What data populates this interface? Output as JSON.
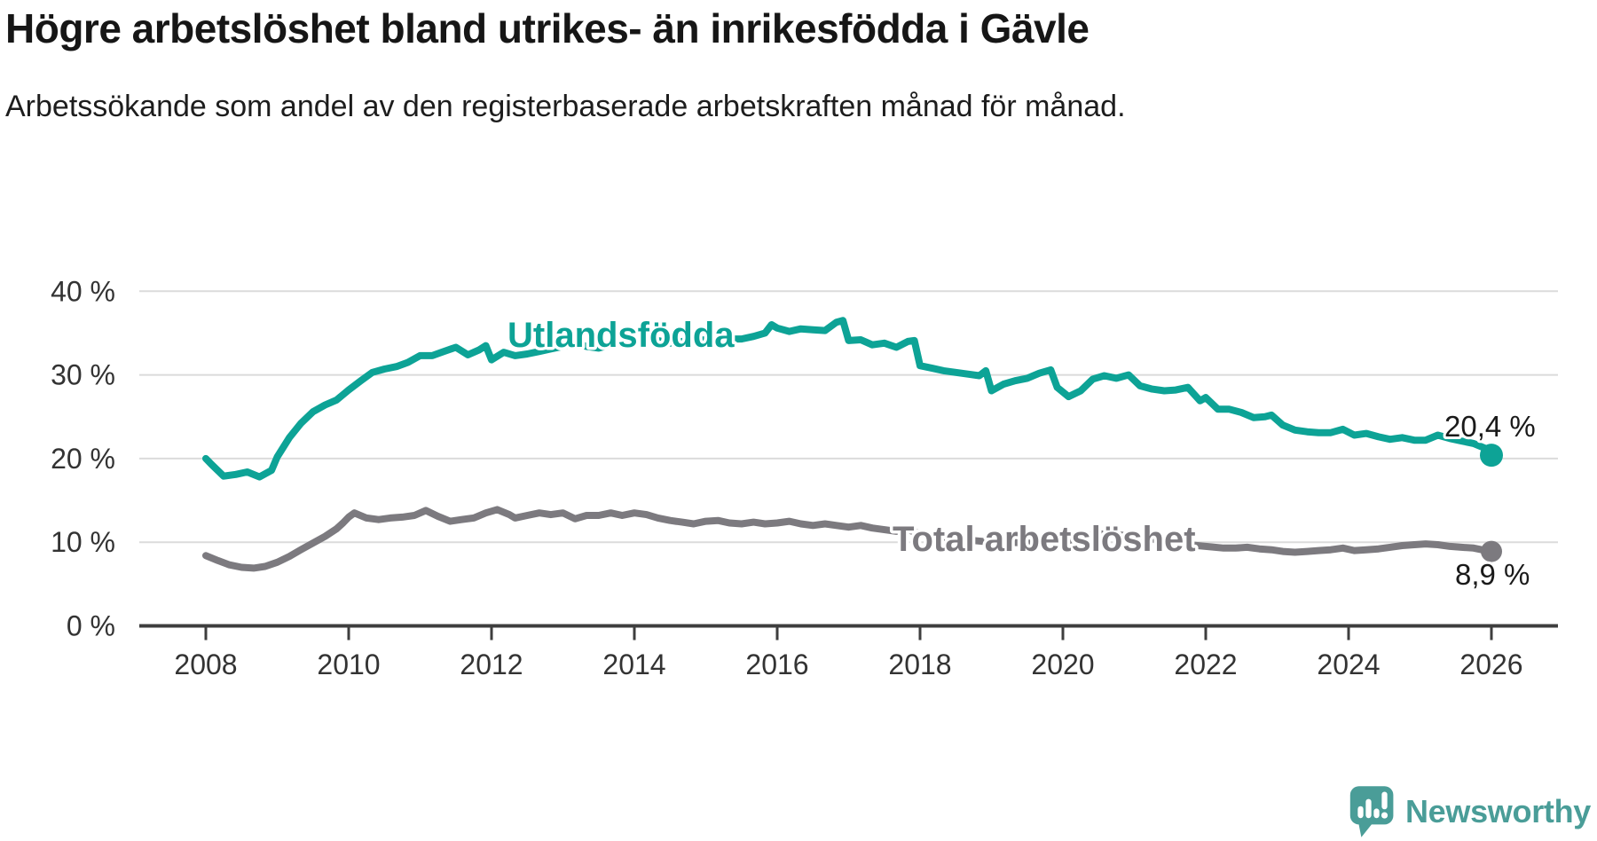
{
  "header": {
    "title": "Högre arbetslöshet bland utrikes- än inrikesfödda i Gävle",
    "subtitle": "Arbetssökande som andel av den registerbaserade arbetskraften månad för månad."
  },
  "chart_data": {
    "type": "line",
    "unit": "%",
    "grid": "horizontal",
    "x_axis": {
      "ticks": [
        2008,
        2010,
        2012,
        2014,
        2016,
        2018,
        2020,
        2022,
        2024,
        2026
      ],
      "range": [
        2007.1,
        2026.9
      ]
    },
    "y_axis": {
      "ticks": [
        {
          "value": 0,
          "label": "0 %"
        },
        {
          "value": 10,
          "label": "10 %"
        },
        {
          "value": 20,
          "label": "20 %"
        },
        {
          "value": 30,
          "label": "30 %"
        },
        {
          "value": 40,
          "label": "40 %"
        }
      ],
      "range": [
        0,
        42
      ]
    },
    "series": [
      {
        "name": "Utlandsfödda",
        "color": "#0DA396",
        "end_label": "20,4 %",
        "end_value": 20.4,
        "points": [
          [
            2008.0,
            20.0
          ],
          [
            2008.08,
            19.3
          ],
          [
            2008.25,
            17.9
          ],
          [
            2008.42,
            18.1
          ],
          [
            2008.58,
            18.4
          ],
          [
            2008.75,
            17.8
          ],
          [
            2008.92,
            18.6
          ],
          [
            2009.0,
            20.2
          ],
          [
            2009.17,
            22.5
          ],
          [
            2009.33,
            24.2
          ],
          [
            2009.5,
            25.6
          ],
          [
            2009.67,
            26.4
          ],
          [
            2009.83,
            27.0
          ],
          [
            2010.0,
            28.2
          ],
          [
            2010.17,
            29.3
          ],
          [
            2010.33,
            30.3
          ],
          [
            2010.5,
            30.7
          ],
          [
            2010.67,
            31.0
          ],
          [
            2010.83,
            31.5
          ],
          [
            2011.0,
            32.3
          ],
          [
            2011.17,
            32.3
          ],
          [
            2011.33,
            32.8
          ],
          [
            2011.5,
            33.3
          ],
          [
            2011.67,
            32.4
          ],
          [
            2011.83,
            33.0
          ],
          [
            2011.92,
            33.5
          ],
          [
            2012.0,
            31.8
          ],
          [
            2012.17,
            32.7
          ],
          [
            2012.33,
            32.3
          ],
          [
            2012.5,
            32.5
          ],
          [
            2012.67,
            32.8
          ],
          [
            2012.83,
            33.1
          ],
          [
            2013.0,
            33.4
          ],
          [
            2013.17,
            33.8
          ],
          [
            2013.33,
            33.4
          ],
          [
            2013.5,
            33.2
          ],
          [
            2013.67,
            33.6
          ],
          [
            2013.83,
            33.8
          ],
          [
            2014.0,
            34.0
          ],
          [
            2014.17,
            34.3
          ],
          [
            2014.33,
            34.1
          ],
          [
            2014.5,
            33.8
          ],
          [
            2014.67,
            34.0
          ],
          [
            2014.83,
            34.1
          ],
          [
            2015.0,
            34.2
          ],
          [
            2015.17,
            34.4
          ],
          [
            2015.33,
            34.3
          ],
          [
            2015.5,
            34.3
          ],
          [
            2015.67,
            34.6
          ],
          [
            2015.83,
            35.0
          ],
          [
            2015.92,
            36.0
          ],
          [
            2016.0,
            35.6
          ],
          [
            2016.17,
            35.2
          ],
          [
            2016.33,
            35.5
          ],
          [
            2016.5,
            35.4
          ],
          [
            2016.67,
            35.3
          ],
          [
            2016.83,
            36.3
          ],
          [
            2016.92,
            36.5
          ],
          [
            2017.0,
            34.1
          ],
          [
            2017.17,
            34.2
          ],
          [
            2017.33,
            33.6
          ],
          [
            2017.5,
            33.8
          ],
          [
            2017.67,
            33.3
          ],
          [
            2017.83,
            34.0
          ],
          [
            2017.92,
            34.1
          ],
          [
            2018.0,
            31.1
          ],
          [
            2018.17,
            30.8
          ],
          [
            2018.33,
            30.5
          ],
          [
            2018.5,
            30.3
          ],
          [
            2018.67,
            30.1
          ],
          [
            2018.83,
            29.9
          ],
          [
            2018.92,
            30.5
          ],
          [
            2019.0,
            28.1
          ],
          [
            2019.17,
            28.9
          ],
          [
            2019.33,
            29.3
          ],
          [
            2019.5,
            29.6
          ],
          [
            2019.67,
            30.2
          ],
          [
            2019.83,
            30.6
          ],
          [
            2019.92,
            28.5
          ],
          [
            2020.08,
            27.4
          ],
          [
            2020.25,
            28.1
          ],
          [
            2020.42,
            29.5
          ],
          [
            2020.58,
            29.9
          ],
          [
            2020.75,
            29.6
          ],
          [
            2020.92,
            30.0
          ],
          [
            2021.08,
            28.7
          ],
          [
            2021.25,
            28.3
          ],
          [
            2021.42,
            28.1
          ],
          [
            2021.58,
            28.2
          ],
          [
            2021.75,
            28.5
          ],
          [
            2021.92,
            26.9
          ],
          [
            2022.0,
            27.3
          ],
          [
            2022.17,
            25.9
          ],
          [
            2022.33,
            25.9
          ],
          [
            2022.5,
            25.5
          ],
          [
            2022.67,
            24.9
          ],
          [
            2022.83,
            25.0
          ],
          [
            2022.92,
            25.2
          ],
          [
            2023.08,
            24.0
          ],
          [
            2023.25,
            23.4
          ],
          [
            2023.42,
            23.2
          ],
          [
            2023.58,
            23.1
          ],
          [
            2023.75,
            23.1
          ],
          [
            2023.92,
            23.5
          ],
          [
            2024.08,
            22.8
          ],
          [
            2024.25,
            23.0
          ],
          [
            2024.42,
            22.6
          ],
          [
            2024.58,
            22.3
          ],
          [
            2024.75,
            22.5
          ],
          [
            2024.92,
            22.2
          ],
          [
            2025.08,
            22.2
          ],
          [
            2025.25,
            22.8
          ],
          [
            2025.42,
            22.4
          ],
          [
            2025.58,
            22.1
          ],
          [
            2025.75,
            21.8
          ],
          [
            2025.92,
            21.2
          ],
          [
            2026.0,
            20.4
          ]
        ]
      },
      {
        "name": "Total arbetslöshet",
        "color": "#7C7A7F",
        "end_label": "8,9 %",
        "end_value": 8.9,
        "points": [
          [
            2008.0,
            8.4
          ],
          [
            2008.17,
            7.8
          ],
          [
            2008.33,
            7.3
          ],
          [
            2008.5,
            7.0
          ],
          [
            2008.67,
            6.9
          ],
          [
            2008.83,
            7.1
          ],
          [
            2009.0,
            7.6
          ],
          [
            2009.17,
            8.3
          ],
          [
            2009.33,
            9.1
          ],
          [
            2009.5,
            9.9
          ],
          [
            2009.67,
            10.7
          ],
          [
            2009.83,
            11.6
          ],
          [
            2009.92,
            12.3
          ],
          [
            2010.0,
            13.0
          ],
          [
            2010.08,
            13.5
          ],
          [
            2010.25,
            12.9
          ],
          [
            2010.42,
            12.7
          ],
          [
            2010.58,
            12.9
          ],
          [
            2010.75,
            13.0
          ],
          [
            2010.92,
            13.2
          ],
          [
            2011.08,
            13.8
          ],
          [
            2011.25,
            13.1
          ],
          [
            2011.42,
            12.5
          ],
          [
            2011.58,
            12.7
          ],
          [
            2011.75,
            12.9
          ],
          [
            2011.92,
            13.5
          ],
          [
            2012.08,
            13.9
          ],
          [
            2012.25,
            13.3
          ],
          [
            2012.33,
            12.9
          ],
          [
            2012.5,
            13.2
          ],
          [
            2012.67,
            13.5
          ],
          [
            2012.83,
            13.3
          ],
          [
            2013.0,
            13.5
          ],
          [
            2013.17,
            12.8
          ],
          [
            2013.33,
            13.2
          ],
          [
            2013.5,
            13.2
          ],
          [
            2013.67,
            13.5
          ],
          [
            2013.83,
            13.2
          ],
          [
            2014.0,
            13.5
          ],
          [
            2014.17,
            13.3
          ],
          [
            2014.33,
            12.9
          ],
          [
            2014.5,
            12.6
          ],
          [
            2014.67,
            12.4
          ],
          [
            2014.83,
            12.2
          ],
          [
            2015.0,
            12.5
          ],
          [
            2015.17,
            12.6
          ],
          [
            2015.33,
            12.3
          ],
          [
            2015.5,
            12.2
          ],
          [
            2015.67,
            12.4
          ],
          [
            2015.83,
            12.2
          ],
          [
            2016.0,
            12.3
          ],
          [
            2016.17,
            12.5
          ],
          [
            2016.33,
            12.2
          ],
          [
            2016.5,
            12.0
          ],
          [
            2016.67,
            12.2
          ],
          [
            2016.83,
            12.0
          ],
          [
            2017.0,
            11.8
          ],
          [
            2017.17,
            12.0
          ],
          [
            2017.33,
            11.7
          ],
          [
            2017.5,
            11.5
          ],
          [
            2017.67,
            11.3
          ],
          [
            2017.83,
            11.5
          ],
          [
            2018.0,
            11.0
          ],
          [
            2018.25,
            10.7
          ],
          [
            2018.5,
            10.4
          ],
          [
            2018.75,
            10.2
          ],
          [
            2019.0,
            10.0
          ],
          [
            2019.25,
            10.0
          ],
          [
            2019.5,
            9.9
          ],
          [
            2019.75,
            9.8
          ],
          [
            2020.0,
            10.0
          ],
          [
            2020.25,
            10.6
          ],
          [
            2020.5,
            11.0
          ],
          [
            2020.75,
            10.9
          ],
          [
            2021.0,
            10.7
          ],
          [
            2021.25,
            10.4
          ],
          [
            2021.5,
            10.0
          ],
          [
            2021.75,
            9.7
          ],
          [
            2022.0,
            9.5
          ],
          [
            2022.25,
            9.3
          ],
          [
            2022.42,
            9.3
          ],
          [
            2022.58,
            9.4
          ],
          [
            2022.75,
            9.2
          ],
          [
            2022.92,
            9.1
          ],
          [
            2023.08,
            8.9
          ],
          [
            2023.25,
            8.8
          ],
          [
            2023.42,
            8.9
          ],
          [
            2023.58,
            9.0
          ],
          [
            2023.75,
            9.1
          ],
          [
            2023.92,
            9.3
          ],
          [
            2024.08,
            9.0
          ],
          [
            2024.25,
            9.1
          ],
          [
            2024.42,
            9.2
          ],
          [
            2024.58,
            9.4
          ],
          [
            2024.75,
            9.6
          ],
          [
            2024.92,
            9.7
          ],
          [
            2025.08,
            9.8
          ],
          [
            2025.25,
            9.7
          ],
          [
            2025.42,
            9.5
          ],
          [
            2025.58,
            9.4
          ],
          [
            2025.75,
            9.3
          ],
          [
            2025.92,
            9.0
          ],
          [
            2026.0,
            8.9
          ]
        ]
      }
    ],
    "colors": {
      "grid": "#DBDBDB",
      "axis": "#3E3E3E",
      "tick_label": "#333333",
      "value_label": "#1A1A1A"
    }
  },
  "branding": {
    "logo_text": "Newsworthy",
    "logo_color": "#4A9D98"
  }
}
